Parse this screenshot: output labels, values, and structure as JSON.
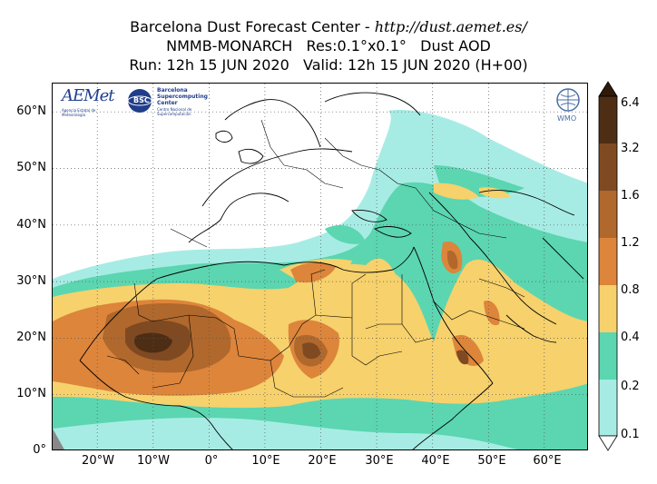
{
  "title": {
    "line1_prefix": "Barcelona Dust Forecast Center - ",
    "line1_url": "http://dust.aemet.es/",
    "line2": "NMMB-MONARCH   Res:0.1°x0.1°   Dust AOD",
    "line3": "Run: 12h 15 JUN 2020   Valid: 12h 15 JUN 2020 (H+00)"
  },
  "map": {
    "lon_range": [
      -28,
      68
    ],
    "lat_range": [
      0,
      65
    ],
    "lat_ticks": [
      {
        "value": 0,
        "label": "0°"
      },
      {
        "value": 10,
        "label": "10°N"
      },
      {
        "value": 20,
        "label": "20°N"
      },
      {
        "value": 30,
        "label": "30°N"
      },
      {
        "value": 40,
        "label": "40°N"
      },
      {
        "value": 50,
        "label": "50°N"
      },
      {
        "value": 60,
        "label": "60°N"
      }
    ],
    "lon_ticks": [
      {
        "value": -20,
        "label": "20°W"
      },
      {
        "value": -10,
        "label": "10°W"
      },
      {
        "value": 0,
        "label": "0°"
      },
      {
        "value": 10,
        "label": "10°E"
      },
      {
        "value": 20,
        "label": "20°E"
      },
      {
        "value": 30,
        "label": "30°E"
      },
      {
        "value": 40,
        "label": "40°E"
      },
      {
        "value": 50,
        "label": "50°E"
      },
      {
        "value": 60,
        "label": "60°E"
      }
    ],
    "gridlines": "dotted"
  },
  "colorbar": {
    "levels": [
      "0.1",
      "0.2",
      "0.4",
      "0.8",
      "1.2",
      "1.6",
      "3.2",
      "6.4"
    ],
    "colors": [
      "#a7ece4",
      "#5bd6b0",
      "#f6d16c",
      "#dd853b",
      "#b0682c",
      "#7f4a22",
      "#4d2d14"
    ],
    "extend": "both",
    "under_color": "#ffffff",
    "over_color": "#2f1a0a"
  },
  "logos": {
    "aemet": "AEMet",
    "aemet_sub": "Agencia Estatal de Meteorología",
    "bsc_badge": "BSC",
    "bsc_line1": "Barcelona",
    "bsc_line2": "Supercomputing",
    "bsc_line3": "Center",
    "bsc_line4": "Centro Nacional de Supercomputación",
    "wmo": "WMO"
  }
}
